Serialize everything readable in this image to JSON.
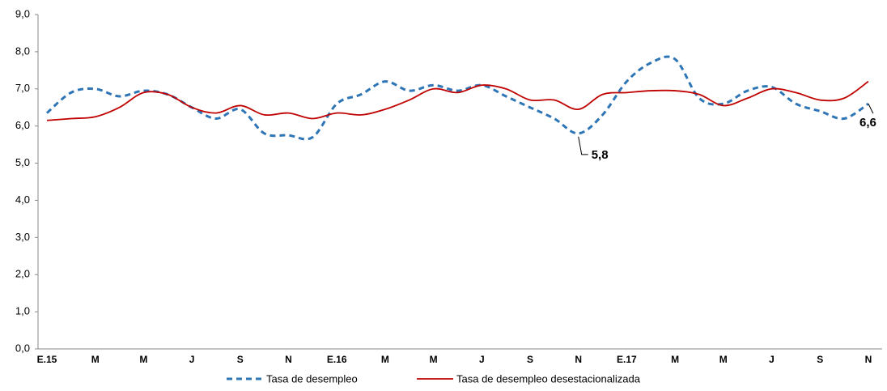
{
  "chart_data": {
    "type": "line",
    "categories": [
      "E.15",
      null,
      "M",
      null,
      "M",
      null,
      "J",
      null,
      "S",
      null,
      "N",
      null,
      "E.16",
      null,
      "M",
      null,
      "M",
      null,
      "J",
      null,
      "S",
      null,
      "N",
      null,
      "E.17",
      null,
      "M",
      null,
      "M",
      null,
      "J",
      null,
      "S",
      null,
      "N"
    ],
    "series": [
      {
        "name": "Tasa de desempleo",
        "color": "#2e75b6",
        "dash": true,
        "values": [
          6.35,
          6.9,
          7.0,
          6.8,
          6.95,
          6.85,
          6.5,
          6.2,
          6.45,
          5.8,
          5.75,
          5.7,
          6.6,
          6.85,
          7.2,
          6.95,
          7.1,
          6.95,
          7.1,
          6.8,
          6.5,
          6.2,
          5.8,
          6.3,
          7.2,
          7.7,
          7.8,
          6.75,
          6.6,
          6.95,
          7.05,
          6.6,
          6.4,
          6.2,
          6.6
        ],
        "value_labels": [
          null,
          null,
          null,
          null,
          null,
          null,
          null,
          null,
          null,
          null,
          null,
          null,
          null,
          null,
          null,
          null,
          null,
          null,
          null,
          null,
          null,
          null,
          "5,8",
          null,
          null,
          null,
          null,
          null,
          null,
          null,
          null,
          null,
          null,
          null,
          "6,6"
        ]
      },
      {
        "name": "Tasa de desempleo desestacionalizada",
        "color": "#c00000",
        "dash": false,
        "values": [
          6.15,
          6.2,
          6.25,
          6.5,
          6.9,
          6.85,
          6.5,
          6.35,
          6.55,
          6.3,
          6.35,
          6.2,
          6.35,
          6.3,
          6.45,
          6.7,
          7.0,
          6.9,
          7.1,
          7.0,
          6.7,
          6.7,
          6.45,
          6.85,
          6.9,
          6.95,
          6.95,
          6.85,
          6.55,
          6.75,
          7.0,
          6.9,
          6.7,
          6.75,
          7.2
        ]
      }
    ],
    "ylim": [
      0,
      9
    ],
    "yticks": [
      {
        "value": 0,
        "label": "0,0"
      },
      {
        "value": 1,
        "label": "1,0"
      },
      {
        "value": 2,
        "label": "2,0"
      },
      {
        "value": 3,
        "label": "3,0"
      },
      {
        "value": 4,
        "label": "4,0"
      },
      {
        "value": 5,
        "label": "5,0"
      },
      {
        "value": 6,
        "label": "6,0"
      },
      {
        "value": 7,
        "label": "7,0"
      },
      {
        "value": 8,
        "label": "8,0"
      },
      {
        "value": 9,
        "label": "9,0"
      }
    ],
    "grid": false,
    "legend": "bottom"
  }
}
